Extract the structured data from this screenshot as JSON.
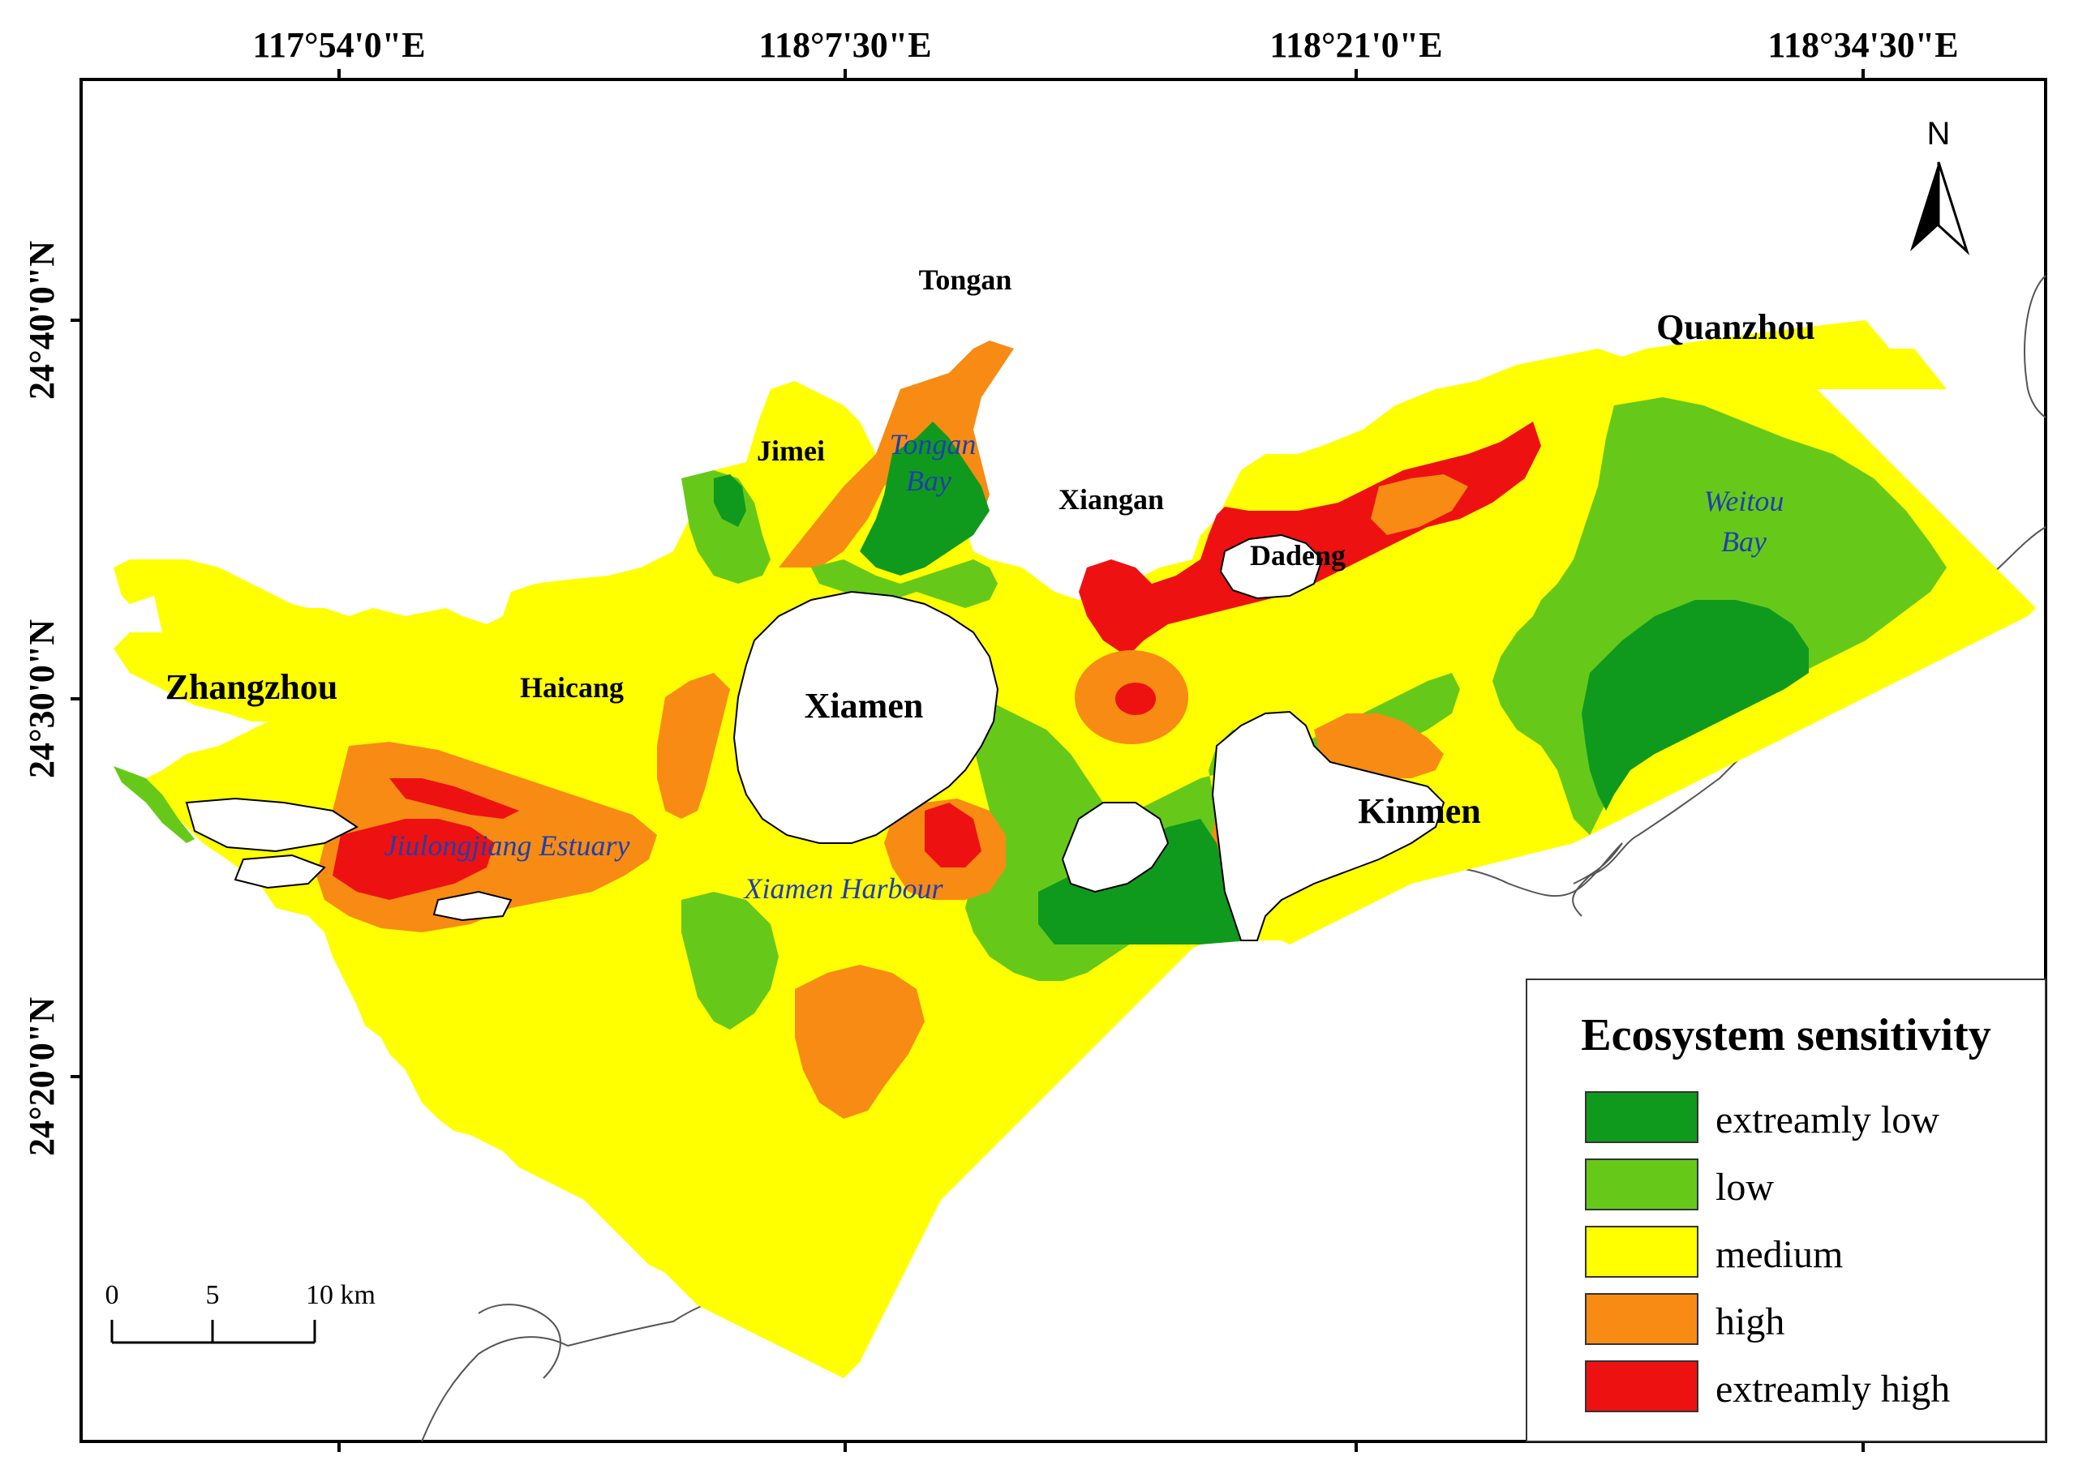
{
  "longitude_labels": [
    "117°54'0\"E",
    "118°7'30\"E",
    "118°21'0\"E",
    "118°34'30\"E"
  ],
  "latitude_labels": [
    "24°40'0\"N",
    "24°30'0\"N",
    "24°20'0\"N"
  ],
  "places": {
    "tongan": "Tongan",
    "quanzhou": "Quanzhou",
    "jimei": "Jimei",
    "xiangan": "Xiangan",
    "dadeng": "Dadeng",
    "zhangzhou": "Zhangzhou",
    "haicang": "Haicang",
    "xiamen": "Xiamen",
    "kinmen": "Kinmen"
  },
  "water_bodies": {
    "tongan_bay_line1": "Tongan",
    "tongan_bay_line2": "Bay",
    "weitou_bay_line1": "Weitou",
    "weitou_bay_line2": "Bay",
    "jiulongjiang_estuary": "Jiulongjiang Estuary",
    "xiamen_harbour": "Xiamen Harbour"
  },
  "north_arrow": {
    "label": "N",
    "icon": "north-arrow-icon"
  },
  "scale_bar": {
    "ticks": [
      "0",
      "5",
      "10 km"
    ]
  },
  "legend": {
    "title": "Ecosystem sensitivity",
    "classes": [
      {
        "label": "extreamly low",
        "color": "#0f9a1e"
      },
      {
        "label": "low",
        "color": "#66c91a"
      },
      {
        "label": "medium",
        "color": "#ffff00"
      },
      {
        "label": "high",
        "color": "#f78b14"
      },
      {
        "label": "extreamly high",
        "color": "#ee1111"
      }
    ]
  }
}
